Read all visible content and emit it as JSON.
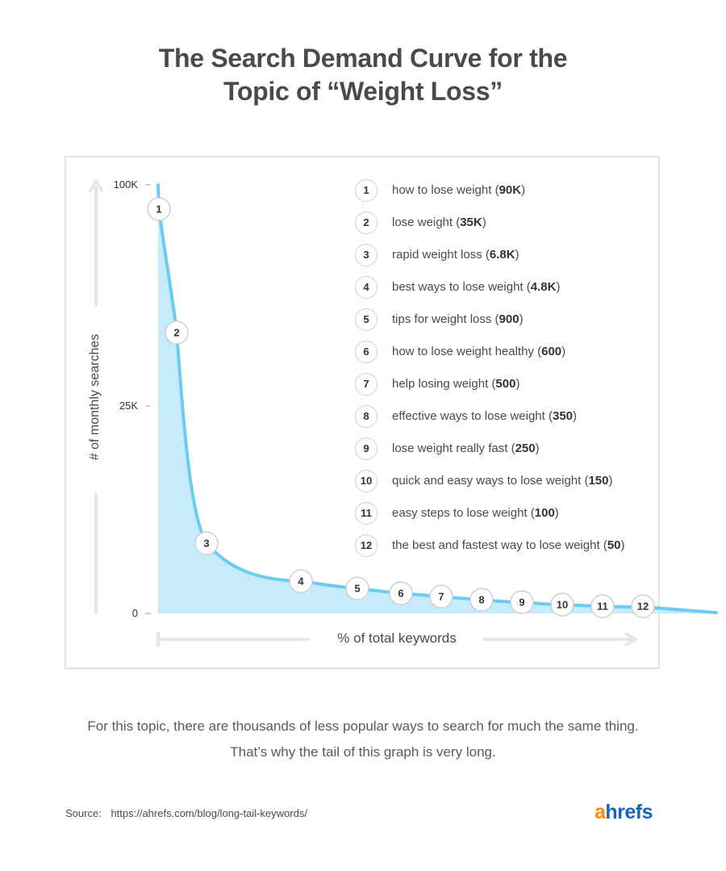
{
  "header": {
    "title_line1": "The Search Demand Curve for the",
    "title_line2": "Topic of “Weight Loss”"
  },
  "chart_data": {
    "type": "area",
    "ylabel": "# of monthly searches",
    "xlabel": "% of total keywords",
    "yticks": [
      "100K",
      "25K",
      "0"
    ],
    "colors": {
      "line": "#6ccbf3",
      "fill": "#c6ecfb",
      "axis": "#e6e6e6",
      "marker_border": "#cfcfcf"
    },
    "points": [
      {
        "n": "1",
        "keyword": "how to lose weight",
        "value": "90K",
        "searches": 90000
      },
      {
        "n": "2",
        "keyword": "lose weight",
        "value": "35K",
        "searches": 35000
      },
      {
        "n": "3",
        "keyword": "rapid weight loss",
        "value": "6.8K",
        "searches": 6800
      },
      {
        "n": "4",
        "keyword": "best ways to lose weight",
        "value": "4.8K",
        "searches": 4800
      },
      {
        "n": "5",
        "keyword": "tips for weight loss",
        "value": "900",
        "searches": 900
      },
      {
        "n": "6",
        "keyword": "how to lose weight healthy",
        "value": "600",
        "searches": 600
      },
      {
        "n": "7",
        "keyword": "help losing weight",
        "value": "500",
        "searches": 500
      },
      {
        "n": "8",
        "keyword": "effective ways to lose weight",
        "value": "350",
        "searches": 350
      },
      {
        "n": "9",
        "keyword": "lose weight really fast",
        "value": "250",
        "searches": 250
      },
      {
        "n": "10",
        "keyword": "quick and easy ways to lose weight",
        "value": "150",
        "searches": 150
      },
      {
        "n": "11",
        "keyword": "easy steps to lose weight",
        "value": "100",
        "searches": 100
      },
      {
        "n": "12",
        "keyword": "the best and fastest way to lose weight",
        "value": "50",
        "searches": 50
      }
    ]
  },
  "caption": {
    "line1": "For this topic, there are thousands of less popular ways to search for much the same thing.",
    "line2": "That’s why the tail of this graph is very long."
  },
  "footer": {
    "source_label": "Source:",
    "source_url": "https://ahrefs.com/blog/long-tail-keywords/",
    "logo_a": "a",
    "logo_rest": "hrefs"
  }
}
